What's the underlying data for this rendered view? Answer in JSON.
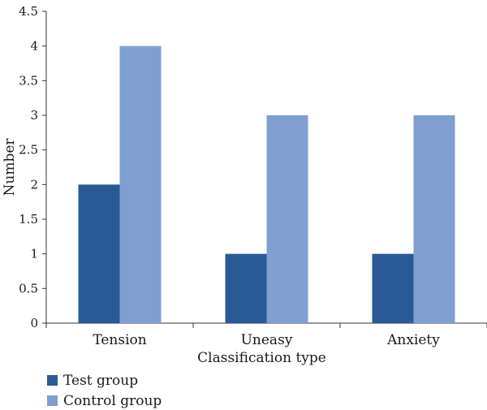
{
  "chart_data": {
    "type": "bar",
    "title": "",
    "xlabel": "Classification type",
    "ylabel": "Number",
    "categories": [
      "Tension",
      "Uneasy",
      "Anxiety"
    ],
    "series": [
      {
        "name": "Test group",
        "values": [
          2,
          1,
          1
        ],
        "color": "#2a5a96"
      },
      {
        "name": "Control group",
        "values": [
          4,
          3,
          3
        ],
        "color": "#7f9fd1"
      }
    ],
    "ylim": [
      0,
      4.5
    ],
    "yticks": [
      "0",
      "0.5",
      "1",
      "1.5",
      "2",
      "2.5",
      "3",
      "3.5",
      "4",
      "4.5"
    ],
    "grid": false,
    "legend_position": "bottom-left"
  }
}
